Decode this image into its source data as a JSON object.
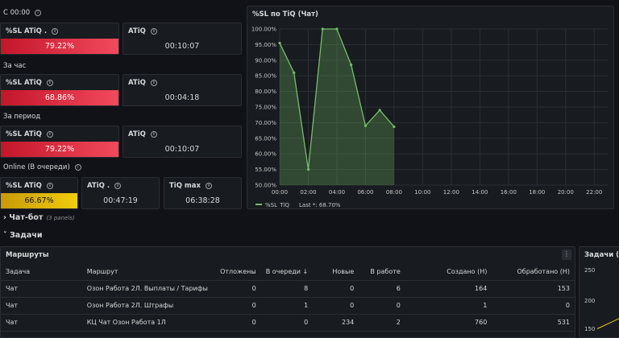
{
  "sections": {
    "since_midnight": "С 00:00",
    "per_hour": "За час",
    "per_period": "За период",
    "online": "Online (В очереди)"
  },
  "stats": {
    "midnight_sl_title": "%SL ATiQ .",
    "midnight_sl_value": "79.22%",
    "midnight_atiq_title": "ATiQ",
    "midnight_atiq_value": "00:10:07",
    "hour_sl_title": "%SL ATiQ",
    "hour_sl_value": "68.86%",
    "hour_atiq_title": "ATiQ",
    "hour_atiq_value": "00:04:18",
    "period_sl_title": "%SL ATiQ",
    "period_sl_value": "79.22%",
    "period_atiq_title": "ATiQ",
    "period_atiq_value": "00:10:07",
    "online_sl_title": "%SL ATiQ",
    "online_sl_value": "66.67%",
    "online_atiq_title": "ATiQ .",
    "online_atiq_value": "00:47:19",
    "online_tiq_title": "TiQ max",
    "online_tiq_value": "06:38:28"
  },
  "colors": {
    "red": "#e02f44",
    "yellow": "#e0b400",
    "line": "#73bf69"
  },
  "rows": {
    "chatbot": "Чат-бот",
    "chatbot_count": "(3 panels)",
    "tasks": "Задачи"
  },
  "routes": {
    "title": "Маршруты",
    "menu": "⋮",
    "columns": [
      "Задача",
      "Маршрут",
      "Отложены",
      "В очереди ↓",
      "Новые",
      "В работе",
      "Создано (Н)",
      "Обработано (Н)"
    ],
    "rows": [
      [
        "Чат",
        "Озон Работа 2Л. Выплаты / Тарифы",
        "0",
        "8",
        "0",
        "6",
        "164",
        "153"
      ],
      [
        "Чат",
        "Озон Работа 2Л. Штрафы",
        "0",
        "1",
        "0",
        "0",
        "1",
        "0"
      ],
      [
        "Чат",
        "КЦ Чат Озон Работа 1Л",
        "0",
        "0",
        "234",
        "2",
        "760",
        "531"
      ]
    ]
  },
  "tasks_chart": {
    "title": "Задачи (Чат",
    "ticks": [
      "250",
      "200",
      "150"
    ]
  },
  "chart_data": {
    "type": "line",
    "title": "%SL по TiQ (Чат)",
    "x": [
      "00:00",
      "01:00",
      "02:00",
      "03:00",
      "04:00",
      "05:00",
      "06:00",
      "07:00",
      "08:00"
    ],
    "series": [
      {
        "name": "%SL_TiQ",
        "values": [
          95.5,
          86,
          55,
          100,
          100,
          88.5,
          69,
          74,
          68.7
        ]
      }
    ],
    "xticks": [
      "00:00",
      "02:00",
      "04:00",
      "06:00",
      "08:00",
      "10:00",
      "12:00",
      "14:00",
      "16:00",
      "18:00",
      "20:00",
      "22:00"
    ],
    "yticks": [
      "100.00%",
      "95.00%",
      "90.00%",
      "85.00%",
      "80.00%",
      "75.00%",
      "70.00%",
      "65.00%",
      "60.00%",
      "55.00%",
      "50.00%"
    ],
    "ylim": [
      50,
      100
    ],
    "xlim_hours": [
      0,
      23
    ],
    "legend_name": "%SL_TiQ",
    "legend_last": "Last *: 68.70%"
  }
}
